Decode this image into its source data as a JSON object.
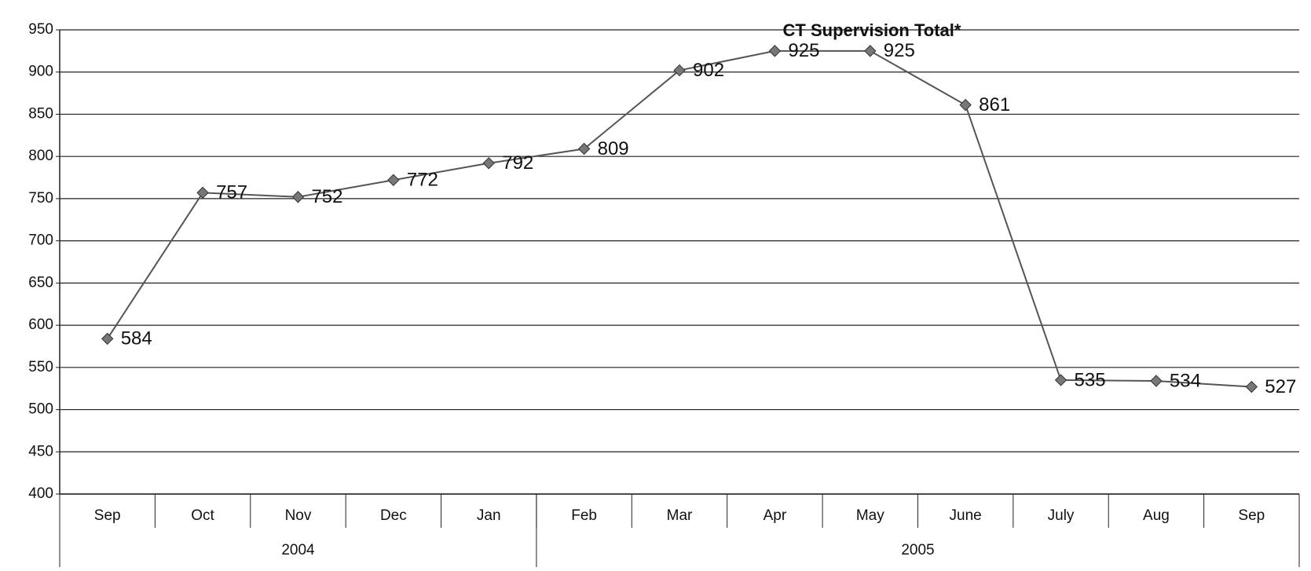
{
  "chart_data": {
    "type": "line",
    "title": "CT Supervision Total*",
    "categories": [
      "Sep",
      "Oct",
      "Nov",
      "Dec",
      "Jan",
      "Feb",
      "Mar",
      "Apr",
      "May",
      "June",
      "July",
      "Aug",
      "Sep"
    ],
    "groups": [
      {
        "label": "2004",
        "count": 5
      },
      {
        "label": "2005",
        "count": 8
      }
    ],
    "series": [
      {
        "name": "CT Supervision Total*",
        "color": "#555555",
        "values": [
          584,
          757,
          752,
          772,
          792,
          809,
          902,
          925,
          925,
          861,
          535,
          534,
          527
        ]
      }
    ],
    "ylim": [
      400,
      950
    ],
    "yticks": [
      400,
      450,
      500,
      550,
      600,
      650,
      700,
      750,
      800,
      850,
      900,
      950
    ],
    "grid": true
  }
}
